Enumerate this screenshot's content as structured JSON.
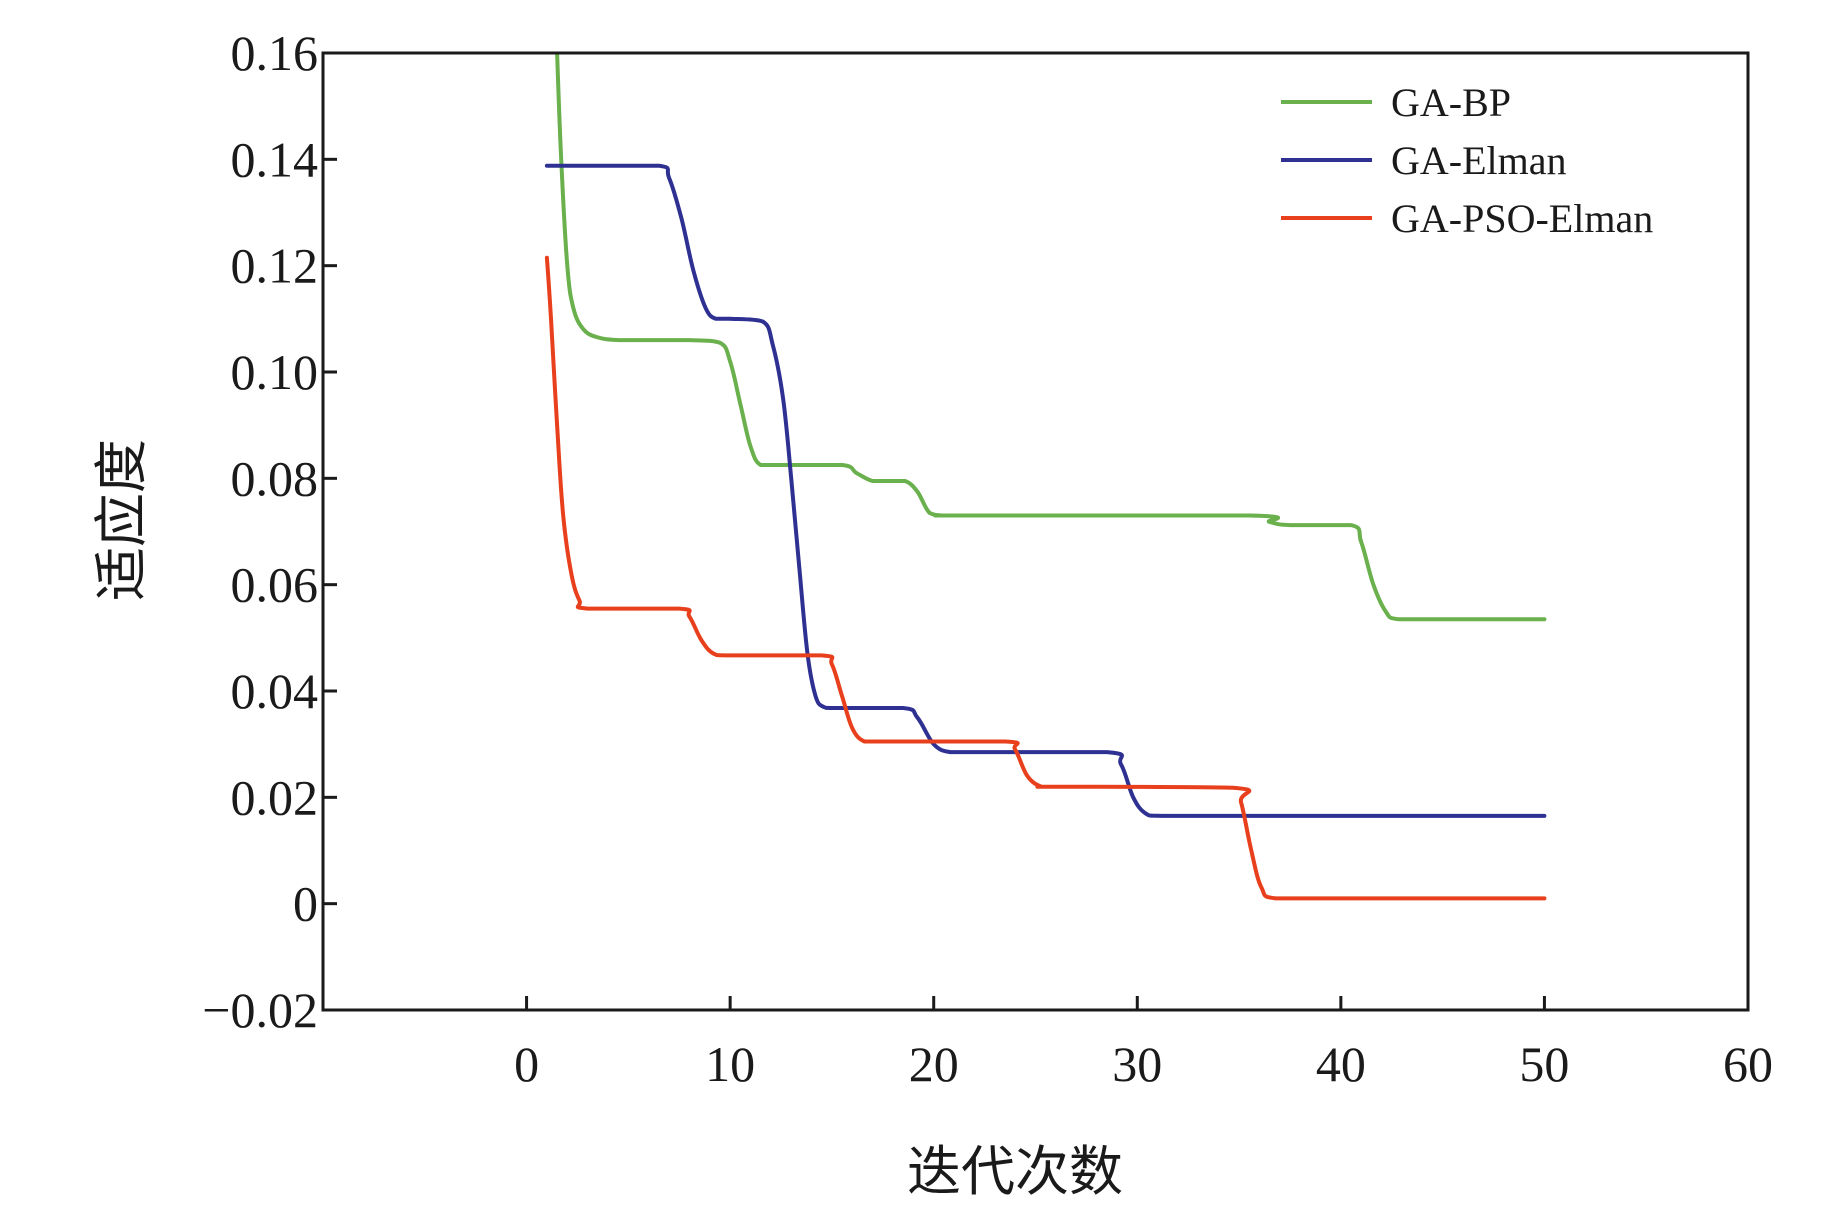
{
  "chart_data": {
    "type": "line",
    "title": "",
    "xlabel": "迭代次数",
    "ylabel": "适应度",
    "xlim": [
      -10,
      60
    ],
    "ylim": [
      -0.02,
      0.16
    ],
    "xticks": [
      0,
      10,
      20,
      30,
      40,
      50,
      60
    ],
    "xtick_labels": [
      "0",
      "10",
      "20",
      "30",
      "40",
      "50",
      "60"
    ],
    "yticks": [
      -0.02,
      0,
      0.02,
      0.04,
      0.06,
      0.08,
      0.1,
      0.12,
      0.14,
      0.16
    ],
    "ytick_labels": [
      "−0.02",
      "0",
      "0.02",
      "0.04",
      "0.06",
      "0.08",
      "0.10",
      "0.12",
      "0.14",
      "0.16"
    ],
    "grid": false,
    "legend_position": "top-right",
    "series": [
      {
        "name": "GA-BP",
        "color": "#6ab04c",
        "x": [
          1.5,
          1.7,
          2.0,
          2.3,
          2.8,
          3.5,
          4.5,
          6,
          8,
          9.5,
          10.0,
          10.5,
          11.0,
          11.5,
          12.5,
          15.5,
          16.2,
          17.0,
          17.8,
          18.6,
          19.2,
          19.8,
          20.5,
          21.5,
          35.5,
          36.5,
          37.5,
          40.5,
          41.0,
          41.6,
          42.2,
          42.8,
          45,
          50
        ],
        "y": [
          0.16,
          0.14,
          0.12,
          0.112,
          0.108,
          0.1065,
          0.106,
          0.106,
          0.106,
          0.1055,
          0.102,
          0.094,
          0.086,
          0.0825,
          0.0825,
          0.0825,
          0.081,
          0.0795,
          0.0795,
          0.0795,
          0.0775,
          0.0735,
          0.073,
          0.073,
          0.073,
          0.0718,
          0.0712,
          0.0712,
          0.068,
          0.06,
          0.055,
          0.0535,
          0.0535,
          0.0535
        ]
      },
      {
        "name": "GA-Elman",
        "color": "#2e3192",
        "x": [
          1,
          3,
          6.5,
          7.0,
          7.6,
          8.2,
          8.8,
          9.3,
          10,
          11.6,
          12.1,
          12.6,
          13.0,
          13.4,
          13.8,
          14.2,
          14.6,
          15.2,
          18.5,
          19.2,
          20.0,
          20.8,
          22,
          28.5,
          29.2,
          29.8,
          30.4,
          31.2,
          35,
          50
        ],
        "y": [
          0.1388,
          0.1388,
          0.1388,
          0.1365,
          0.129,
          0.119,
          0.112,
          0.11,
          0.11,
          0.1095,
          0.105,
          0.095,
          0.08,
          0.063,
          0.047,
          0.039,
          0.037,
          0.0368,
          0.0368,
          0.035,
          0.03,
          0.0285,
          0.0285,
          0.0285,
          0.0262,
          0.02,
          0.017,
          0.0165,
          0.0165,
          0.0165
        ]
      },
      {
        "name": "GA-PSO-Elman",
        "color": "#e8401c",
        "x": [
          1,
          1.2,
          1.5,
          1.8,
          2.2,
          2.6,
          3.0,
          7.5,
          8.0,
          8.6,
          9.2,
          10,
          14.5,
          15.0,
          15.5,
          16.0,
          16.6,
          17.5,
          23.5,
          24.0,
          24.6,
          25.3,
          26,
          34.7,
          35.1,
          35.6,
          36.1,
          36.8,
          40,
          50
        ],
        "y": [
          0.1215,
          0.11,
          0.09,
          0.073,
          0.062,
          0.057,
          0.0555,
          0.0555,
          0.054,
          0.0495,
          0.047,
          0.0467,
          0.0467,
          0.045,
          0.039,
          0.033,
          0.0305,
          0.0305,
          0.0305,
          0.029,
          0.024,
          0.022,
          0.022,
          0.0218,
          0.019,
          0.01,
          0.003,
          0.001,
          0.001,
          0.001
        ]
      }
    ]
  }
}
